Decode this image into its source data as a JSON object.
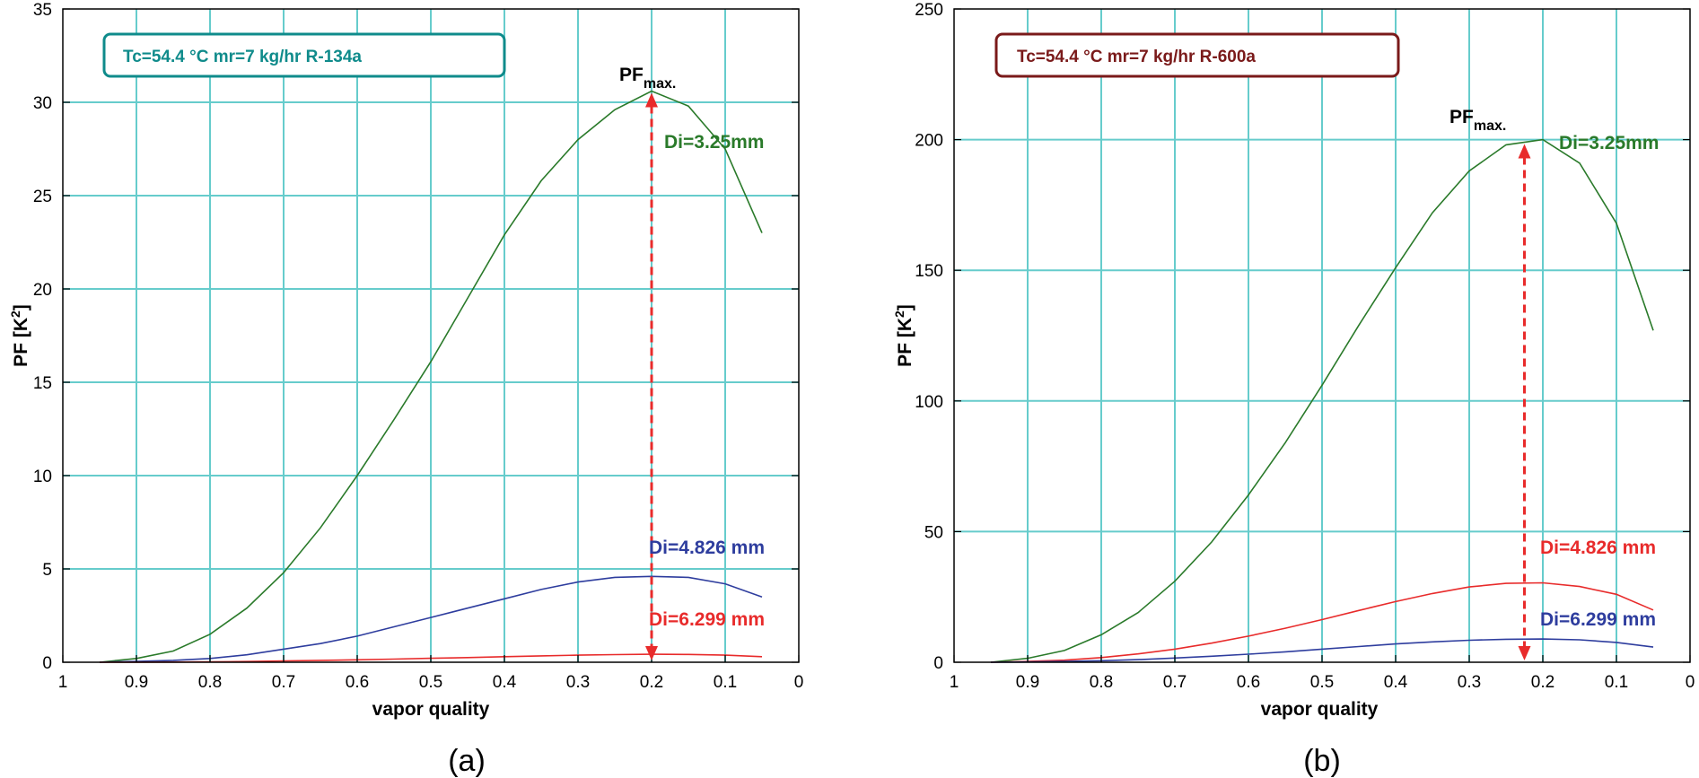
{
  "chart_data": [
    {
      "type": "line",
      "panel_label": "(a)",
      "info_box": {
        "text": "Tc=54.4 °C  mr=7 kg/hr R-134a",
        "color": "#0f8b8b"
      },
      "xlabel": "vapor quality",
      "ylabel": "PF  [K",
      "ylabel_sup": "2",
      "ylabel_end": "]",
      "xlim": [
        1,
        0
      ],
      "ylim": [
        0,
        35
      ],
      "x_ticks": [
        1,
        0.9,
        0.8,
        0.7,
        0.6,
        0.5,
        0.4,
        0.3,
        0.2,
        0.1,
        0
      ],
      "x_tick_labels": [
        "1",
        "0.9",
        "0.8",
        "0.7",
        "0.6",
        "0.5",
        "0.4",
        "0.3",
        "0.2",
        "0.1",
        "0"
      ],
      "y_ticks": [
        0,
        5,
        10,
        15,
        20,
        25,
        30,
        35
      ],
      "y_tick_labels": [
        "0",
        "5",
        "10",
        "15",
        "20",
        "25",
        "30",
        "35"
      ],
      "grid": true,
      "grid_color": "#66cccc",
      "x": [
        0.95,
        0.9,
        0.85,
        0.8,
        0.75,
        0.7,
        0.65,
        0.6,
        0.55,
        0.5,
        0.45,
        0.4,
        0.35,
        0.3,
        0.25,
        0.2,
        0.15,
        0.1,
        0.05
      ],
      "series": [
        {
          "name": "Di=3.25mm",
          "color": "#2a7a2a",
          "values": [
            0,
            0.2,
            0.6,
            1.5,
            2.9,
            4.8,
            7.2,
            10.0,
            13.0,
            16.1,
            19.5,
            22.9,
            25.8,
            28.0,
            29.6,
            30.6,
            29.8,
            27.5,
            23.0
          ]
        },
        {
          "name": "Di=4.826 mm",
          "color": "#2e3d9e",
          "values": [
            0,
            0.05,
            0.1,
            0.2,
            0.4,
            0.7,
            1.0,
            1.4,
            1.9,
            2.4,
            2.9,
            3.4,
            3.9,
            4.3,
            4.55,
            4.6,
            4.55,
            4.2,
            3.5
          ]
        },
        {
          "name": "Di=6.299 mm",
          "color": "#e82b2b",
          "values": [
            0,
            0,
            0.01,
            0.02,
            0.04,
            0.07,
            0.1,
            0.13,
            0.17,
            0.21,
            0.25,
            0.3,
            0.34,
            0.38,
            0.41,
            0.43,
            0.42,
            0.38,
            0.3
          ]
        }
      ],
      "annotations": {
        "pf_max": "PF",
        "pf_max_sub": "max.",
        "pf_max_x": 0.2,
        "pf_max_value": 30.6
      }
    },
    {
      "type": "line",
      "panel_label": "(b)",
      "info_box": {
        "text": "Tc=54.4 °C  mr=7 kg/hr R-600a",
        "color": "#7a1a1a"
      },
      "xlabel": "vapor quality",
      "ylabel": "PF  [K",
      "ylabel_sup": "2",
      "ylabel_end": "]",
      "xlim": [
        1,
        0
      ],
      "ylim": [
        0,
        250
      ],
      "x_ticks": [
        1,
        0.9,
        0.8,
        0.7,
        0.6,
        0.5,
        0.4,
        0.3,
        0.2,
        0.1,
        0
      ],
      "x_tick_labels": [
        "1",
        "0.9",
        "0.8",
        "0.7",
        "0.6",
        "0.5",
        "0.4",
        "0.3",
        "0.2",
        "0.1",
        "0"
      ],
      "y_ticks": [
        0,
        50,
        100,
        150,
        200,
        250
      ],
      "y_tick_labels": [
        "0",
        "50",
        "100",
        "150",
        "200",
        "250"
      ],
      "grid": true,
      "grid_color": "#66cccc",
      "x": [
        0.95,
        0.9,
        0.85,
        0.8,
        0.75,
        0.7,
        0.65,
        0.6,
        0.55,
        0.5,
        0.45,
        0.4,
        0.35,
        0.3,
        0.25,
        0.2,
        0.15,
        0.1,
        0.05
      ],
      "series": [
        {
          "name": "Di=3.25mm",
          "color": "#2a7a2a",
          "values": [
            0,
            1.5,
            4.5,
            10.5,
            19.0,
            31.0,
            46.0,
            64.0,
            84.0,
            106.0,
            129.0,
            151.0,
            172.0,
            188.0,
            198.0,
            200.0,
            191.0,
            168.0,
            127.0
          ]
        },
        {
          "name": "Di=4.826 mm",
          "color": "#e82b2b",
          "values": [
            0,
            0.3,
            0.8,
            1.8,
            3.2,
            5.0,
            7.3,
            10.0,
            13.0,
            16.3,
            19.8,
            23.2,
            26.3,
            28.8,
            30.2,
            30.4,
            29.0,
            26.0,
            20.0
          ]
        },
        {
          "name": "Di=6.299 mm",
          "color": "#2e3d9e",
          "values": [
            0,
            0.1,
            0.3,
            0.6,
            1.0,
            1.6,
            2.3,
            3.1,
            4.0,
            5.0,
            6.0,
            7.0,
            7.8,
            8.4,
            8.8,
            8.9,
            8.6,
            7.6,
            5.8
          ]
        }
      ],
      "annotations": {
        "pf_max": "PF",
        "pf_max_sub": "max.",
        "pf_max_x": 0.225,
        "pf_max_value": 199
      }
    }
  ]
}
